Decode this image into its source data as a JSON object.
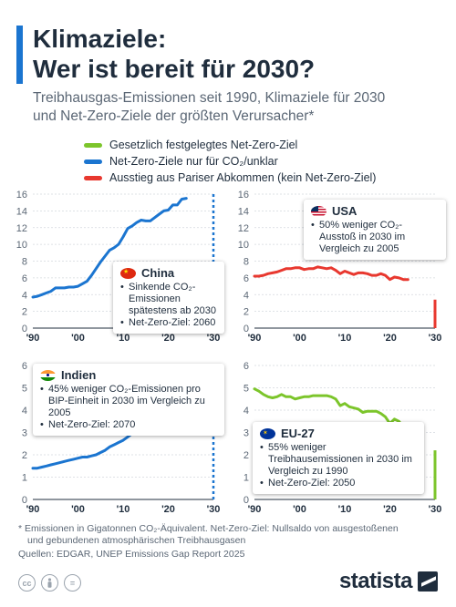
{
  "header": {
    "title_line1": "Klimaziele:",
    "title_line2": "Wer ist bereit für 2030?",
    "subtitle_line1": "Treibhausgas-Emissionen seit 1990, Klimaziele für 2030",
    "subtitle_line2": "und Net-Zero-Ziele der größten Verursacher*"
  },
  "legend": [
    {
      "label": "Gesetzlich festgelegtes Net-Zero-Ziel",
      "color": "#7cc52b"
    },
    {
      "label": "Net-Zero-Ziele nur für CO₂/unklar",
      "color": "#1b75d0"
    },
    {
      "label": "Ausstieg aus Pariser Abkommen (kein Net-Zero-Ziel)",
      "color": "#e8382f"
    }
  ],
  "chart_data": [
    {
      "type": "line",
      "name": "China",
      "color": "#1b75d0",
      "ylim": [
        0,
        16
      ],
      "yticks": [
        0,
        2,
        4,
        6,
        8,
        10,
        12,
        14,
        16
      ],
      "xlim": [
        1990,
        2030
      ],
      "xticks": [
        "'90",
        "'00",
        "'10",
        "'20",
        "'30"
      ],
      "target_year": 2030,
      "target_style": "dotted",
      "x": [
        1990,
        1991,
        1992,
        1993,
        1994,
        1995,
        1996,
        1997,
        1998,
        1999,
        2000,
        2001,
        2002,
        2003,
        2004,
        2005,
        2006,
        2007,
        2008,
        2009,
        2010,
        2011,
        2012,
        2013,
        2014,
        2015,
        2016,
        2017,
        2018,
        2019,
        2020,
        2021,
        2022,
        2023,
        2024
      ],
      "y": [
        3.7,
        3.8,
        4.0,
        4.2,
        4.4,
        4.8,
        4.8,
        4.8,
        4.9,
        4.9,
        5.0,
        5.3,
        5.6,
        6.3,
        7.1,
        7.9,
        8.6,
        9.3,
        9.6,
        10.0,
        10.9,
        11.9,
        12.2,
        12.6,
        12.9,
        12.8,
        12.8,
        13.2,
        13.6,
        14.0,
        14.1,
        14.7,
        14.7,
        15.4,
        15.5
      ],
      "info": {
        "country": "China",
        "bullets": [
          "Sinkende CO₂-Emissionen spätestens ab 2030",
          "Net-Zero-Ziel: 2060"
        ]
      }
    },
    {
      "type": "line",
      "name": "USA",
      "color": "#e8382f",
      "ylim": [
        0,
        16
      ],
      "yticks": [
        0,
        2,
        4,
        6,
        8,
        10,
        12,
        14,
        16
      ],
      "xlim": [
        1990,
        2030
      ],
      "xticks": [
        "'90",
        "'00",
        "'10",
        "'20",
        "'30"
      ],
      "target_year": 2030,
      "target_value": 3.4,
      "target_style": "bar",
      "x": [
        1990,
        1991,
        1992,
        1993,
        1994,
        1995,
        1996,
        1997,
        1998,
        1999,
        2000,
        2001,
        2002,
        2003,
        2004,
        2005,
        2006,
        2007,
        2008,
        2009,
        2010,
        2011,
        2012,
        2013,
        2014,
        2015,
        2016,
        2017,
        2018,
        2019,
        2020,
        2021,
        2022,
        2023,
        2024
      ],
      "y": [
        6.2,
        6.2,
        6.3,
        6.5,
        6.6,
        6.7,
        6.9,
        7.1,
        7.1,
        7.2,
        7.2,
        7.0,
        7.1,
        7.1,
        7.3,
        7.2,
        7.1,
        7.2,
        6.9,
        6.5,
        6.8,
        6.6,
        6.4,
        6.6,
        6.6,
        6.5,
        6.3,
        6.3,
        6.5,
        6.3,
        5.8,
        6.1,
        6.0,
        5.8,
        5.8
      ],
      "info": {
        "country": "USA",
        "bullets": [
          "50% weniger CO₂-Ausstoß in 2030 im Vergleich zu 2005"
        ]
      }
    },
    {
      "type": "line",
      "name": "Indien",
      "color": "#1b75d0",
      "ylim": [
        0,
        6
      ],
      "yticks": [
        0,
        1,
        2,
        3,
        4,
        5,
        6
      ],
      "xlim": [
        1990,
        2030
      ],
      "xticks": [
        "'90",
        "'00",
        "'10",
        "'20",
        "'30"
      ],
      "target_year": 2030,
      "target_style": "dotted",
      "x": [
        1990,
        1991,
        1992,
        1993,
        1994,
        1995,
        1996,
        1997,
        1998,
        1999,
        2000,
        2001,
        2002,
        2003,
        2004,
        2005,
        2006,
        2007,
        2008,
        2009,
        2010,
        2011,
        2012,
        2013,
        2014,
        2015,
        2016,
        2017,
        2018,
        2019,
        2020,
        2021,
        2022,
        2023,
        2024
      ],
      "y": [
        1.4,
        1.4,
        1.45,
        1.5,
        1.55,
        1.6,
        1.65,
        1.7,
        1.75,
        1.8,
        1.85,
        1.9,
        1.9,
        1.95,
        2.0,
        2.1,
        2.2,
        2.35,
        2.45,
        2.55,
        2.65,
        2.8,
        2.95,
        3.05,
        3.15,
        3.25,
        3.35,
        3.45,
        3.6,
        3.6,
        3.45,
        3.7,
        3.95,
        4.2,
        4.4
      ],
      "info": {
        "country": "Indien",
        "bullets": [
          "45% weniger CO₂-Emissionen pro BIP-Einheit in 2030 im Vergleich zu 2005",
          "Net-Zero-Ziel: 2070"
        ]
      }
    },
    {
      "type": "line",
      "name": "EU-27",
      "color": "#7cc52b",
      "ylim": [
        0,
        6
      ],
      "yticks": [
        0,
        1,
        2,
        3,
        4,
        5,
        6
      ],
      "xlim": [
        1990,
        2030
      ],
      "xticks": [
        "'90",
        "'00",
        "'10",
        "'20",
        "'30"
      ],
      "target_year": 2030,
      "target_value": 2.2,
      "target_style": "bar",
      "x": [
        1990,
        1991,
        1992,
        1993,
        1994,
        1995,
        1996,
        1997,
        1998,
        1999,
        2000,
        2001,
        2002,
        2003,
        2004,
        2005,
        2006,
        2007,
        2008,
        2009,
        2010,
        2011,
        2012,
        2013,
        2014,
        2015,
        2016,
        2017,
        2018,
        2019,
        2020,
        2021,
        2022,
        2023,
        2024
      ],
      "y": [
        4.95,
        4.85,
        4.7,
        4.6,
        4.55,
        4.6,
        4.7,
        4.6,
        4.6,
        4.5,
        4.55,
        4.6,
        4.6,
        4.65,
        4.65,
        4.65,
        4.65,
        4.6,
        4.5,
        4.2,
        4.3,
        4.15,
        4.1,
        4.05,
        3.9,
        3.95,
        3.95,
        3.95,
        3.85,
        3.7,
        3.4,
        3.6,
        3.5,
        3.25,
        3.2
      ],
      "info": {
        "country": "EU-27",
        "bullets": [
          "55% weniger Treibhausemissionen in 2030 im Vergleich zu 1990",
          "Net-Zero-Ziel: 2050"
        ]
      }
    }
  ],
  "footer": {
    "footnote_line1": "* Emissionen in Gigatonnen CO₂-Äquivalent. Net-Zero-Ziel: Nullsaldo von ausgestoßenen",
    "footnote_line2": "und gebundenen atmosphärischen Treibhausgasen",
    "source": "Quellen: EDGAR, UNEP Emissions Gap Report 2025",
    "cc_icons": [
      "cc",
      "by",
      "="
    ],
    "brand": "statista"
  }
}
